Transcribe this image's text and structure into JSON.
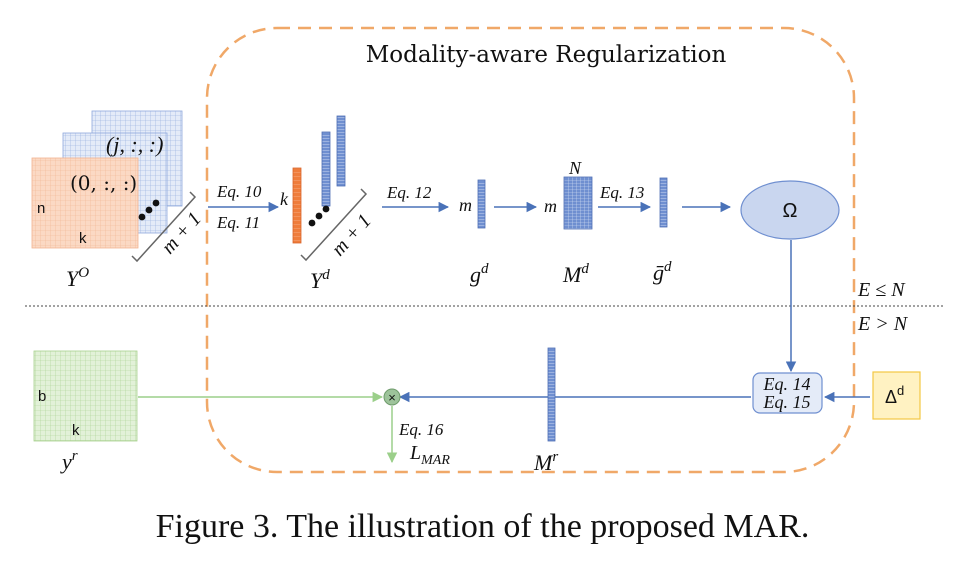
{
  "region_title": "Modality-aware  Regularization",
  "inputs": {
    "tensor_label_j": "(j, :, :)",
    "tensor_label_0": "(0, :, :)",
    "dim_n": "n",
    "dim_k": "k",
    "count_brace": "m + 1",
    "yo_label": "Y",
    "yo_sup": "O",
    "yd_label": "Y",
    "yd_sup": "d",
    "yd_dim_k": "k",
    "count_brace_2": "m + 1"
  },
  "equations": {
    "eq10": "Eq. 10",
    "eq11": "Eq. 11",
    "eq12": "Eq. 12",
    "eq13": "Eq. 13",
    "eq14": "Eq. 14",
    "eq15": "Eq. 15",
    "eq16": "Eq. 16"
  },
  "nodes": {
    "gd_dim": "m",
    "gd_label": "g",
    "gd_sup": "d",
    "md_dim_m": "m",
    "md_dim_n": "N",
    "md_label": "M",
    "md_sup": "d",
    "gbar_label": "ḡ",
    "gbar_sup": "d",
    "omega": "Ω",
    "delta": "Δ",
    "delta_sup": "d",
    "mr_label": "M",
    "mr_sup": "r",
    "mult": "×",
    "loss": "L",
    "loss_sub": "MAR"
  },
  "conditions": {
    "top": "E ≤ N",
    "bottom": "E > N"
  },
  "reference": {
    "dim_b": "b",
    "dim_k": "k",
    "label": "y",
    "sup": "r"
  },
  "caption": "Figure 3. The illustration of the proposed MAR.",
  "colors": {
    "dashed_region": "#f0a868",
    "grid_orange_fill": "#fbd9c4",
    "grid_orange_line": "#f2b491",
    "grid_blue_fill": "#dfe7f7",
    "grid_blue_line": "#8fa9dc",
    "grid_green_fill": "#dff0d4",
    "grid_green_line": "#a8d18e",
    "bar_blue": "#6f8fd0",
    "bar_orange": "#ef7d3c",
    "arrow_blue": "#4a72b8",
    "arrow_green": "#9bcf8a",
    "omega_fill": "#c9d6ef",
    "delta_fill": "#fff2c2",
    "delta_border": "#f2c744"
  }
}
